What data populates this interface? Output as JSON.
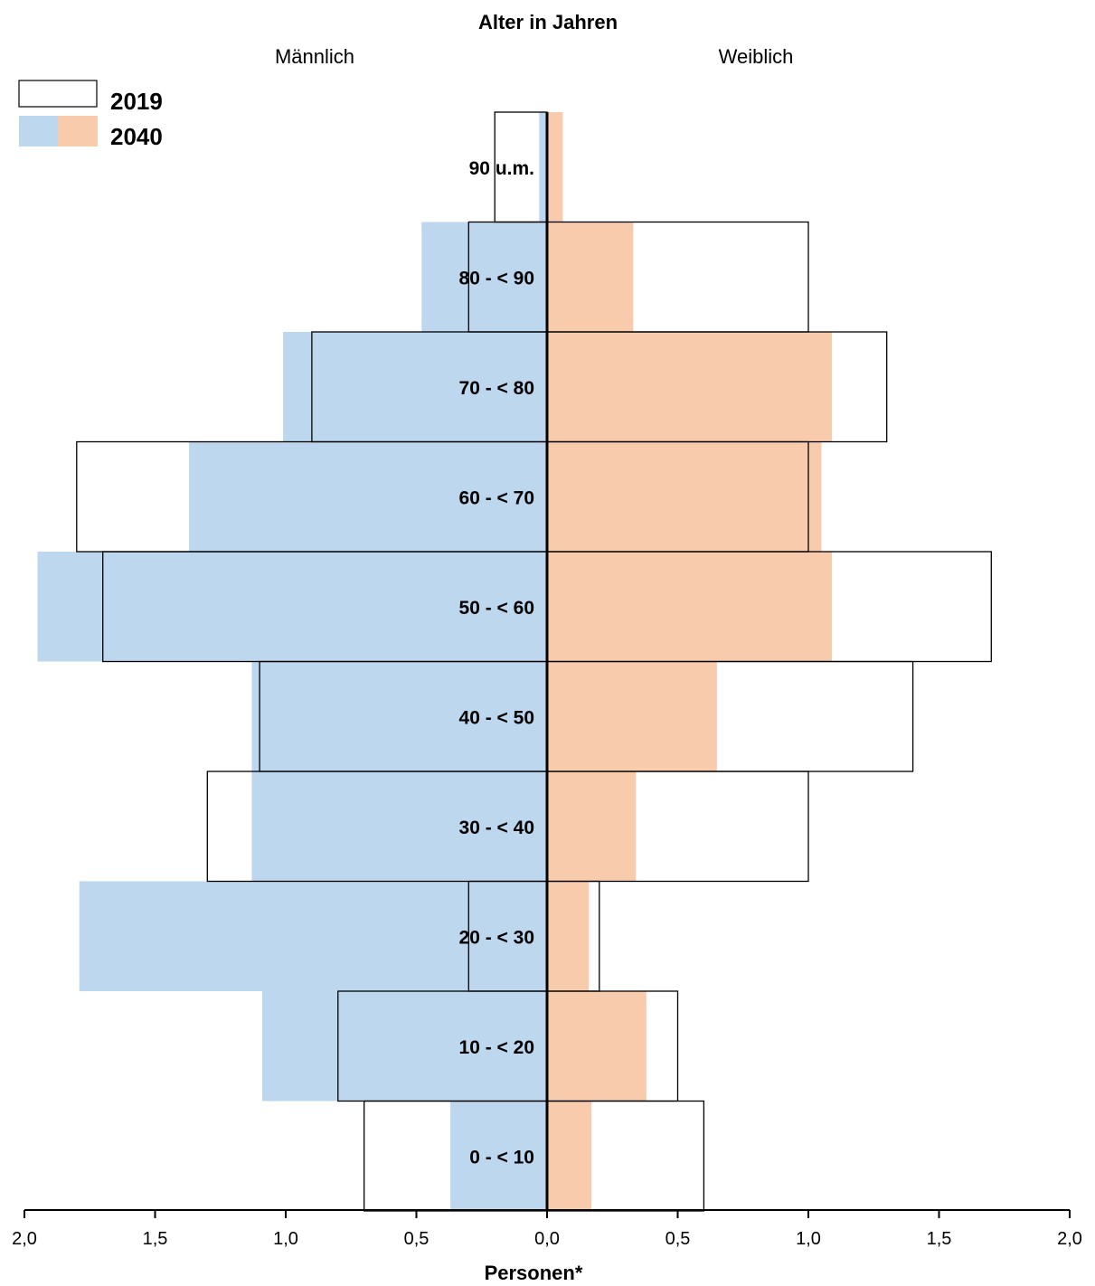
{
  "chart_data": {
    "type": "bar",
    "orientation": "horizontal",
    "layout": "population-pyramid",
    "title": "Alter in Jahren",
    "xlabel": "Personen*",
    "side_labels": {
      "left": "Männlich",
      "right": "Weiblich"
    },
    "xlim": [
      -2.0,
      2.0
    ],
    "x_ticks": [
      -2.0,
      -1.5,
      -1.0,
      -0.5,
      0.0,
      0.5,
      1.0,
      1.5,
      2.0
    ],
    "x_tick_labels": [
      "2,0",
      "1,5",
      "1,0",
      "0,5",
      "0,0",
      "0,5",
      "1,0",
      "1,5",
      "2,0"
    ],
    "categories": [
      "90 u.m.",
      "80 - < 90",
      "70 - < 80",
      "60 - < 70",
      "50 - < 60",
      "40 - < 50",
      "30 - < 40",
      "20 - < 30",
      "10 - < 20",
      "0 - < 10"
    ],
    "series": [
      {
        "name": "2019",
        "style": "outline",
        "male": [
          0.2,
          0.3,
          0.9,
          1.8,
          1.7,
          1.1,
          1.3,
          0.3,
          0.8,
          0.7
        ],
        "female": [
          0.0,
          1.0,
          1.3,
          1.0,
          1.7,
          1.4,
          1.0,
          0.2,
          0.5,
          0.6
        ]
      },
      {
        "name": "2040",
        "style": "filled",
        "male": [
          0.03,
          0.48,
          1.01,
          1.37,
          1.95,
          1.13,
          1.13,
          1.79,
          1.09,
          0.37
        ],
        "female": [
          0.06,
          0.33,
          1.09,
          1.05,
          1.09,
          0.65,
          0.34,
          0.16,
          0.38,
          0.17
        ]
      }
    ],
    "colors": {
      "male_fill": "#BDD7EE",
      "female_fill": "#F8CBAD",
      "outline": "#000000",
      "axis": "#000000"
    },
    "grid": false,
    "legend_position": "top-left"
  },
  "legend": {
    "items": [
      {
        "label": "2019"
      },
      {
        "label": "2040"
      }
    ]
  }
}
